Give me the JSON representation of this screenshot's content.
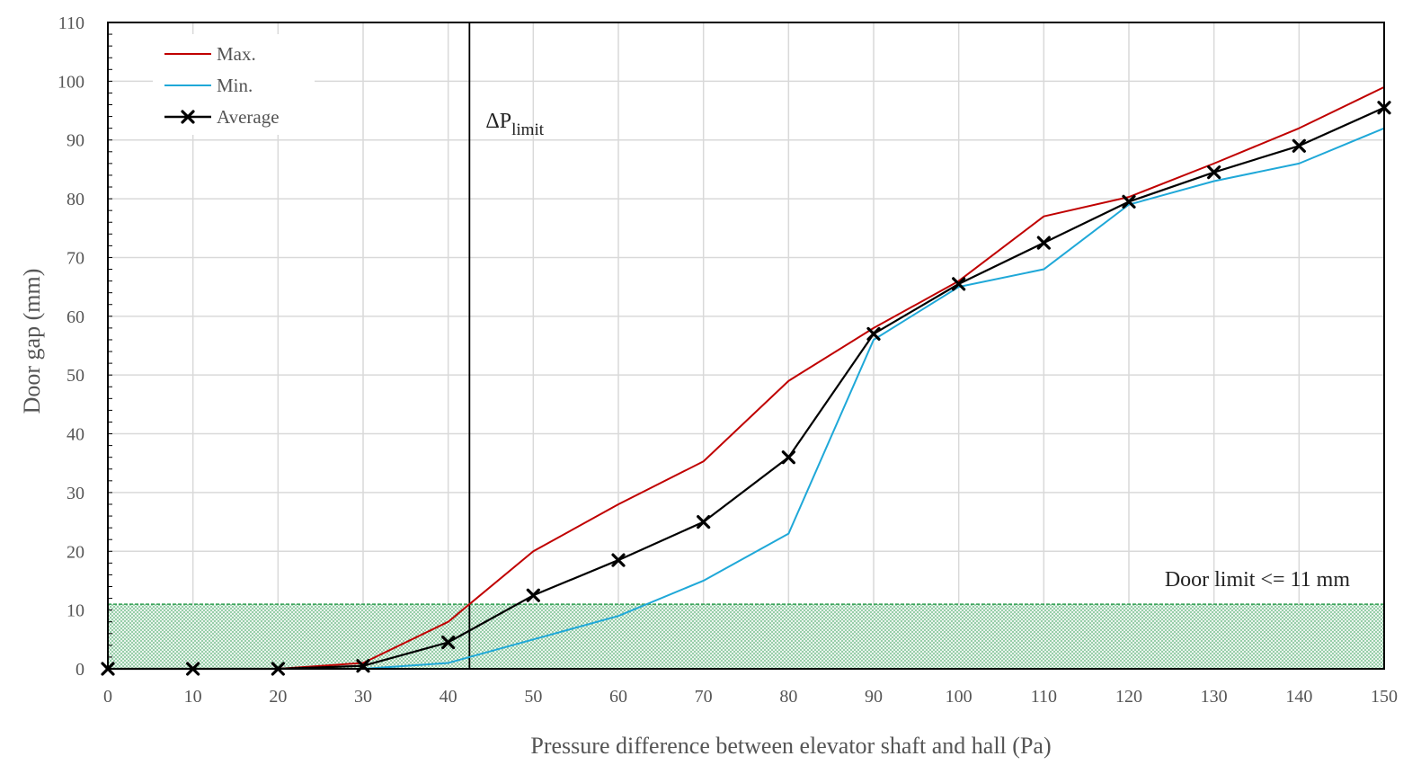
{
  "chart_data": {
    "type": "line",
    "title": "",
    "xlabel": "Pressure difference between elevator shaft and hall (Pa)",
    "ylabel": "Door gap (mm)",
    "xlim": [
      0,
      150
    ],
    "ylim": [
      0,
      110
    ],
    "x_ticks": [
      0,
      10,
      20,
      30,
      40,
      50,
      60,
      70,
      80,
      90,
      100,
      110,
      120,
      130,
      140,
      150
    ],
    "y_ticks": [
      0,
      10,
      20,
      30,
      40,
      50,
      60,
      70,
      80,
      90,
      100,
      110
    ],
    "grid": true,
    "legend_position": "top-left",
    "x": [
      0,
      10,
      20,
      30,
      40,
      50,
      60,
      70,
      80,
      90,
      100,
      110,
      120,
      130,
      140,
      150
    ],
    "series": [
      {
        "name": "Max.",
        "color": "#c00000",
        "marker": "none",
        "values": [
          0,
          0,
          0,
          1,
          8,
          20,
          28,
          35.3,
          49,
          58,
          66,
          77,
          80.3,
          86,
          92,
          99
        ]
      },
      {
        "name": "Min.",
        "color": "#1fa8d8",
        "marker": "none",
        "values": [
          0,
          0,
          0,
          0,
          1,
          5,
          9,
          15,
          23,
          56,
          65,
          68,
          79,
          83,
          86,
          92
        ]
      },
      {
        "name": "Average",
        "color": "#000000",
        "marker": "x",
        "values": [
          0,
          0,
          0,
          0.5,
          4.5,
          12.5,
          18.5,
          25,
          36,
          57,
          65.5,
          72.5,
          79.5,
          84.5,
          89,
          95.5
        ]
      }
    ],
    "annotations": [
      {
        "type": "vline",
        "x": 42.5,
        "label_main": "ΔP",
        "label_sub": "limit"
      },
      {
        "type": "band",
        "y_from": 0,
        "y_to": 11,
        "color": "#2e9e4f",
        "label": "Door limit <= 11 mm"
      }
    ]
  }
}
